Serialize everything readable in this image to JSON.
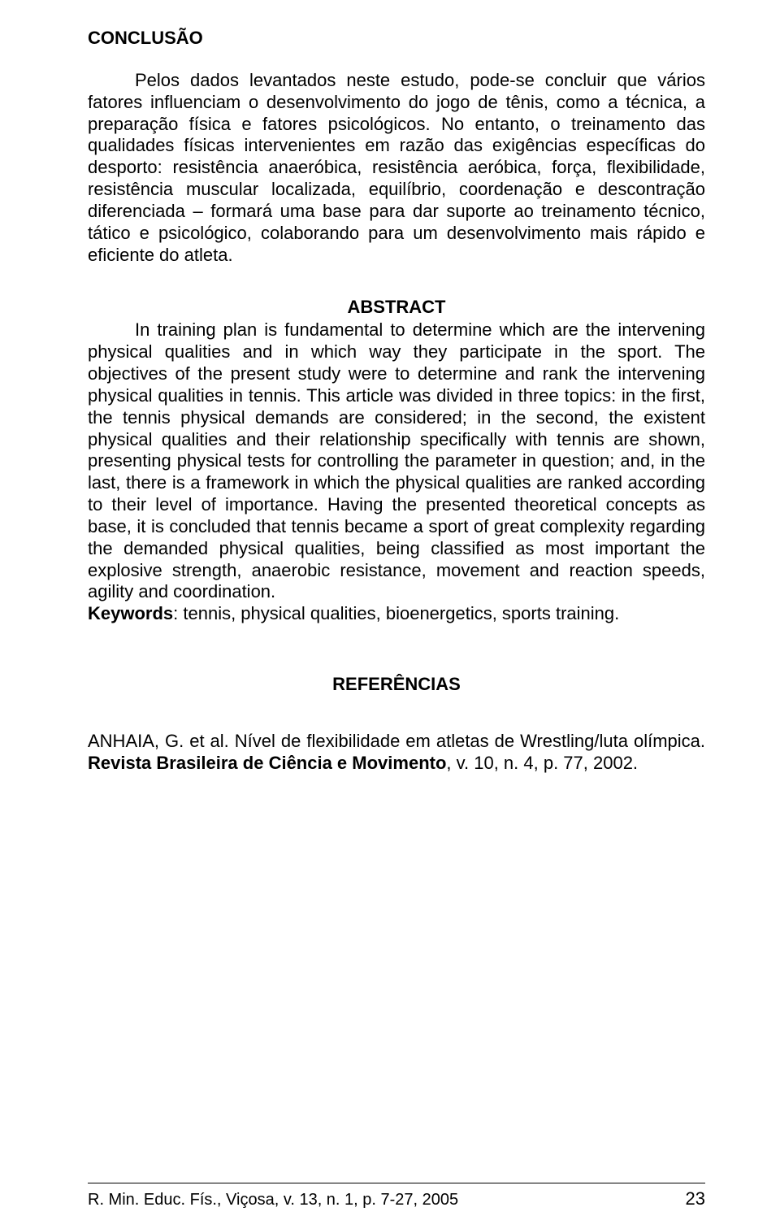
{
  "conclusion": {
    "title": "CONCLUSÃO",
    "p1": "Pelos dados levantados neste estudo, pode-se concluir que vários fatores influenciam o desenvolvimento do jogo de tênis, como a técnica, a preparação física e fatores psicológicos. No entanto, o treinamento das qualidades físicas intervenientes em razão das exigências específicas do desporto: resistência anaeróbica, resistência aeróbica, força, flexibilidade, resistência muscular localizada, equilíbrio, coordenação e descontração diferenciada – formará uma base para dar suporte ao treinamento técnico, tático e psicológico, colaborando para um desenvolvimento mais rápido e eficiente do atleta."
  },
  "abstract": {
    "title": "ABSTRACT",
    "body": "In training plan is fundamental to determine which are the intervening physical qualities and in which way they participate in the sport. The objectives of the present study were to determine and rank the intervening physical qualities in tennis. This article was divided in three topics: in the first, the tennis physical demands are considered; in the second, the existent physical qualities and their relationship specifically with tennis are shown, presenting physical tests for controlling the parameter in question; and, in the last, there is a framework in which the physical qualities are ranked according to their level of importance. Having the presented theoretical concepts as base, it is concluded that tennis became a sport of great complexity regarding the demanded physical qualities, being classified as most important the explosive strength, anaerobic resistance, movement and reaction speeds, agility and coordination.",
    "keywords_label": "Keywords",
    "keywords_text": ":  tennis, physical qualities, bioenergetics, sports training."
  },
  "references": {
    "title": "REFERÊNCIAS",
    "entry1_pre": "ANHAIA, G. et al. Nível de flexibilidade em atletas de Wrestling/luta olímpica. ",
    "entry1_bold": "Revista Brasileira de Ciência e Movimento",
    "entry1_post": ", v. 10, n. 4, p. 77, 2002."
  },
  "footer": {
    "citation": "R. Min. Educ. Fís., Viçosa, v. 13, n. 1, p. 7-27, 2005",
    "page": "23"
  }
}
